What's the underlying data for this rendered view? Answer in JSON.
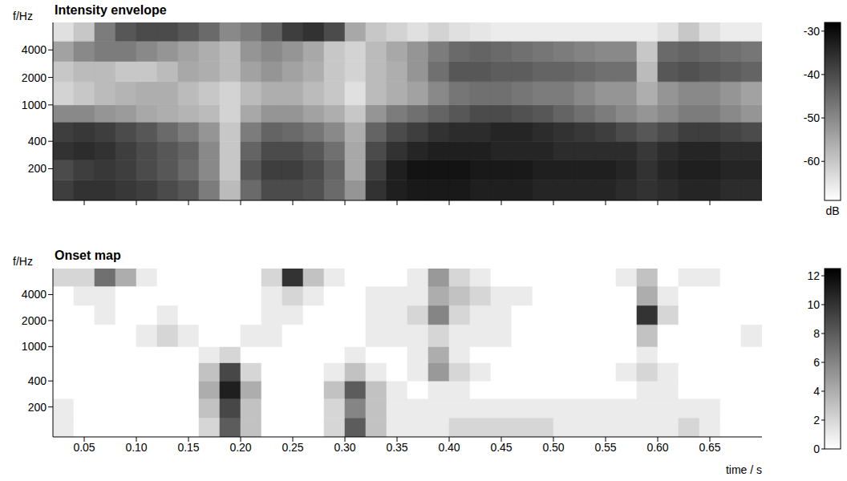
{
  "chart_data": [
    {
      "type": "heatmap",
      "title": "Intensity envelope",
      "y_label": "f/Hz",
      "log": "y",
      "tick_labels": "y",
      "xlim": [
        0.02,
        0.7
      ],
      "xticks": [
        0.05,
        0.1,
        0.15,
        0.2,
        0.25,
        0.3,
        0.35,
        0.4,
        0.45,
        0.5,
        0.55,
        0.6,
        0.65
      ],
      "ylim": [
        90,
        8000
      ],
      "yticks": [
        200,
        400,
        1000,
        2000,
        4000
      ],
      "time_edges": [
        0.02,
        0.04,
        0.06,
        0.08,
        0.1,
        0.12,
        0.14,
        0.16,
        0.18,
        0.2,
        0.22,
        0.24,
        0.26,
        0.28,
        0.3,
        0.32,
        0.34,
        0.36,
        0.38,
        0.4,
        0.42,
        0.44,
        0.46,
        0.48,
        0.5,
        0.52,
        0.54,
        0.56,
        0.58,
        0.6,
        0.62,
        0.64,
        0.66,
        0.68,
        0.7
      ],
      "freq_edges": [
        90,
        150,
        250,
        400,
        650,
        1000,
        1800,
        3000,
        5000,
        8000
      ],
      "cells": [
        [
          -38,
          -36,
          -36,
          -37,
          -38,
          -40,
          -42,
          -48,
          -58,
          -45,
          -40,
          -40,
          -41,
          -45,
          -52,
          -36,
          -33,
          -32,
          -32,
          -32,
          -33,
          -33,
          -33,
          -34,
          -34,
          -34,
          -34,
          -35,
          -36,
          -35,
          -34,
          -34,
          -35,
          -35
        ],
        [
          -40,
          -38,
          -37,
          -38,
          -40,
          -42,
          -45,
          -50,
          -60,
          -42,
          -38,
          -38,
          -40,
          -44,
          -55,
          -38,
          -33,
          -31,
          -31,
          -31,
          -32,
          -32,
          -32,
          -33,
          -33,
          -33,
          -33,
          -34,
          -36,
          -34,
          -33,
          -33,
          -34,
          -34
        ],
        [
          -36,
          -35,
          -36,
          -38,
          -40,
          -42,
          -44,
          -50,
          -60,
          -44,
          -40,
          -40,
          -42,
          -46,
          -55,
          -40,
          -36,
          -34,
          -33,
          -33,
          -33,
          -34,
          -34,
          -34,
          -35,
          -35,
          -35,
          -35,
          -37,
          -35,
          -34,
          -34,
          -35,
          -35
        ],
        [
          -38,
          -37,
          -38,
          -40,
          -42,
          -45,
          -48,
          -52,
          -60,
          -48,
          -44,
          -45,
          -47,
          -50,
          -56,
          -44,
          -40,
          -38,
          -36,
          -35,
          -35,
          -34,
          -34,
          -35,
          -36,
          -37,
          -38,
          -40,
          -42,
          -40,
          -38,
          -38,
          -39,
          -40
        ],
        [
          -50,
          -50,
          -52,
          -53,
          -55,
          -56,
          -57,
          -58,
          -62,
          -55,
          -52,
          -52,
          -54,
          -56,
          -60,
          -52,
          -48,
          -46,
          -44,
          -42,
          -40,
          -40,
          -41,
          -42,
          -44,
          -46,
          -48,
          -50,
          -52,
          -50,
          -48,
          -48,
          -50,
          -52
        ],
        [
          -62,
          -60,
          -58,
          -57,
          -56,
          -56,
          -58,
          -60,
          -62,
          -58,
          -56,
          -56,
          -58,
          -60,
          -64,
          -58,
          -56,
          -54,
          -50,
          -47,
          -46,
          -46,
          -47,
          -48,
          -48,
          -50,
          -52,
          -52,
          -56,
          -52,
          -50,
          -50,
          -52,
          -54
        ],
        [
          -60,
          -58,
          -58,
          -60,
          -60,
          -58,
          -55,
          -56,
          -58,
          -54,
          -52,
          -54,
          -56,
          -60,
          -62,
          -58,
          -56,
          -52,
          -46,
          -42,
          -42,
          -43,
          -43,
          -44,
          -44,
          -45,
          -46,
          -46,
          -58,
          -42,
          -41,
          -42,
          -43,
          -44
        ],
        [
          -54,
          -50,
          -48,
          -48,
          -50,
          -52,
          -54,
          -56,
          -58,
          -52,
          -50,
          -52,
          -55,
          -60,
          -62,
          -58,
          -55,
          -52,
          -48,
          -45,
          -44,
          -45,
          -46,
          -47,
          -48,
          -49,
          -50,
          -50,
          -60,
          -45,
          -44,
          -45,
          -46,
          -47
        ],
        [
          -64,
          -60,
          -48,
          -42,
          -40,
          -40,
          -42,
          -45,
          -50,
          -48,
          -44,
          -38,
          -36,
          -40,
          -55,
          -60,
          -62,
          -64,
          -62,
          -64,
          -65,
          -66,
          -66,
          -66,
          -66,
          -66,
          -66,
          -66,
          -66,
          -64,
          -60,
          -64,
          -66,
          -66
        ]
      ],
      "colorbar": {
        "range": [
          -69,
          -28
        ],
        "ticks": [
          -30,
          -40,
          -50,
          -60
        ],
        "label": "dB"
      }
    },
    {
      "type": "heatmap",
      "title": "Onset map",
      "y_label": "f/Hz",
      "x_label": "time / s",
      "log": "y",
      "xlim": [
        0.02,
        0.7
      ],
      "xticks": [
        0.05,
        {
          "value": 0.1,
          "label": "0.10"
        },
        0.15,
        {
          "value": 0.2,
          "label": "0.20"
        },
        0.25,
        {
          "value": 0.3,
          "label": "0.30"
        },
        0.35,
        {
          "value": 0.4,
          "label": "0.40"
        },
        0.45,
        {
          "value": 0.5,
          "label": "0.50"
        },
        0.55,
        {
          "value": 0.6,
          "label": "0.60"
        },
        0.65
      ],
      "ylim": [
        90,
        8000
      ],
      "yticks": [
        200,
        400,
        1000,
        2000,
        4000
      ],
      "time_edges": [
        0.02,
        0.04,
        0.06,
        0.08,
        0.1,
        0.12,
        0.14,
        0.16,
        0.18,
        0.2,
        0.22,
        0.24,
        0.26,
        0.28,
        0.3,
        0.32,
        0.34,
        0.36,
        0.38,
        0.4,
        0.42,
        0.44,
        0.46,
        0.48,
        0.5,
        0.52,
        0.54,
        0.56,
        0.58,
        0.6,
        0.62,
        0.64,
        0.66,
        0.68,
        0.7
      ],
      "freq_edges": [
        90,
        150,
        250,
        400,
        650,
        1000,
        1800,
        3000,
        5000,
        8000
      ],
      "cells": [
        [
          1,
          0,
          0,
          0,
          0,
          0,
          0,
          2,
          8,
          3,
          0,
          0,
          0,
          2,
          8,
          3,
          1,
          1,
          1,
          2,
          2,
          2,
          2,
          2,
          1,
          1,
          1,
          1,
          1,
          1,
          2,
          1,
          0,
          0
        ],
        [
          1,
          0,
          0,
          0,
          0,
          0,
          0,
          3,
          9,
          3,
          0,
          0,
          0,
          2,
          6,
          3,
          1,
          1,
          1,
          1,
          1,
          1,
          1,
          1,
          1,
          1,
          1,
          1,
          1,
          1,
          1,
          1,
          0,
          0
        ],
        [
          0,
          0,
          0,
          0,
          0,
          0,
          0,
          4,
          11,
          4,
          0,
          0,
          0,
          3,
          8,
          3,
          1,
          0,
          1,
          1,
          0,
          0,
          0,
          0,
          0,
          0,
          0,
          0,
          1,
          1,
          0,
          0,
          0,
          0
        ],
        [
          0,
          0,
          0,
          0,
          0,
          0,
          0,
          3,
          9,
          2,
          0,
          0,
          0,
          1,
          3,
          1,
          0,
          1,
          5,
          2,
          1,
          0,
          0,
          0,
          0,
          0,
          0,
          1,
          2,
          1,
          0,
          0,
          0,
          0
        ],
        [
          0,
          0,
          0,
          0,
          0,
          0,
          0,
          1,
          2,
          0,
          0,
          0,
          0,
          0,
          1,
          0,
          0,
          1,
          4,
          1,
          0,
          0,
          0,
          0,
          0,
          0,
          0,
          0,
          1,
          0,
          0,
          0,
          0,
          0
        ],
        [
          0,
          0,
          0,
          0,
          1,
          2,
          1,
          0,
          0,
          1,
          1,
          0,
          0,
          0,
          0,
          1,
          1,
          1,
          2,
          1,
          1,
          1,
          0,
          0,
          0,
          0,
          0,
          0,
          3,
          0,
          0,
          0,
          0,
          1
        ],
        [
          0,
          0,
          1,
          0,
          0,
          1,
          0,
          0,
          0,
          0,
          1,
          1,
          0,
          0,
          0,
          1,
          1,
          2,
          6,
          2,
          1,
          1,
          0,
          0,
          0,
          0,
          0,
          0,
          10,
          2,
          0,
          0,
          0,
          0
        ],
        [
          0,
          1,
          1,
          0,
          0,
          0,
          0,
          0,
          0,
          0,
          1,
          2,
          1,
          0,
          0,
          1,
          1,
          1,
          4,
          3,
          2,
          1,
          1,
          0,
          0,
          0,
          0,
          0,
          4,
          1,
          0,
          0,
          0,
          0
        ],
        [
          2,
          2,
          7,
          4,
          1,
          0,
          0,
          0,
          0,
          0,
          2,
          10,
          3,
          1,
          0,
          0,
          0,
          1,
          5,
          2,
          1,
          0,
          0,
          0,
          0,
          0,
          0,
          1,
          3,
          0,
          1,
          1,
          0,
          0
        ]
      ],
      "colorbar": {
        "range": [
          0,
          12.5
        ],
        "ticks": [
          0,
          2,
          4,
          6,
          8,
          10,
          12
        ]
      }
    }
  ]
}
